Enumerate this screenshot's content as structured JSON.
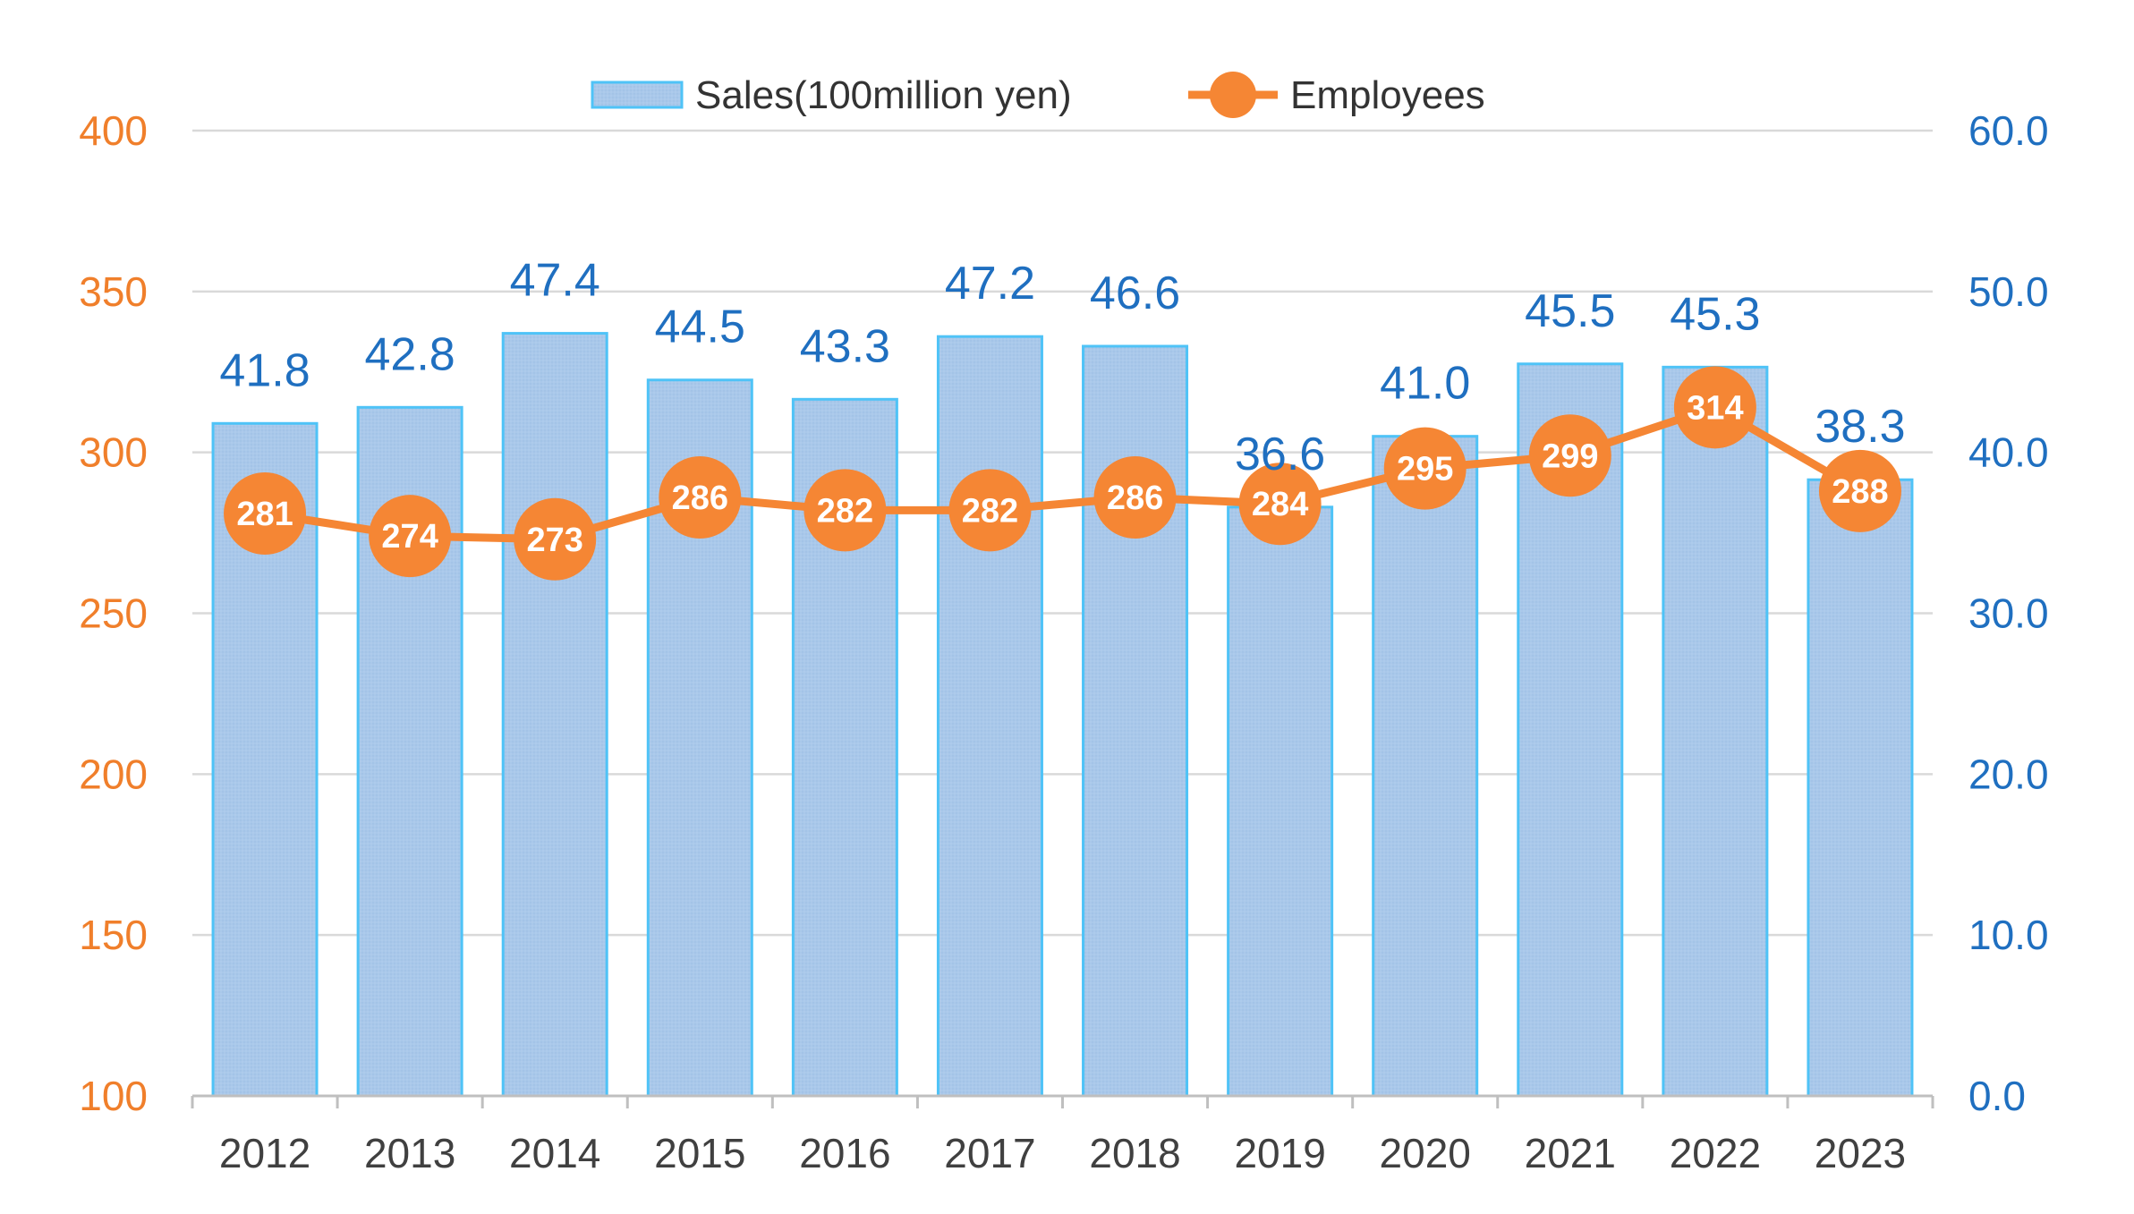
{
  "chart_data": {
    "type": "bar",
    "categories": [
      "2012",
      "2013",
      "2014",
      "2015",
      "2016",
      "2017",
      "2018",
      "2019",
      "2020",
      "2021",
      "2022",
      "2023"
    ],
    "series": [
      {
        "name": "Sales(100million yen)",
        "type": "bar",
        "axis": "right",
        "values": [
          41.8,
          42.8,
          47.4,
          44.5,
          43.3,
          47.2,
          46.6,
          36.6,
          41.0,
          45.5,
          45.3,
          38.3
        ],
        "labels": [
          "41.8",
          "42.8",
          "47.4",
          "44.5",
          "43.3",
          "47.2",
          "46.6",
          "36.6",
          "41.0",
          "45.5",
          "45.3",
          "38.3"
        ],
        "color": "#A7C6E8",
        "border_color": "#4FC3F7"
      },
      {
        "name": "Employees",
        "type": "line",
        "axis": "left",
        "values": [
          281,
          274,
          273,
          286,
          282,
          282,
          286,
          284,
          295,
          299,
          314,
          288
        ],
        "color": "#F58634"
      }
    ],
    "left_axis": {
      "ylim": [
        100,
        400
      ],
      "ticks": [
        "100",
        "150",
        "200",
        "250",
        "300",
        "350",
        "400"
      ],
      "color": "#F07F2B"
    },
    "right_axis": {
      "ylim": [
        0,
        60
      ],
      "ticks": [
        "0.0",
        "10.0",
        "20.0",
        "30.0",
        "40.0",
        "50.0",
        "60.0"
      ],
      "color": "#1F6FC0"
    },
    "grid": true,
    "legend": "top-center",
    "title": "",
    "xlabel": "",
    "ylabel": ""
  }
}
